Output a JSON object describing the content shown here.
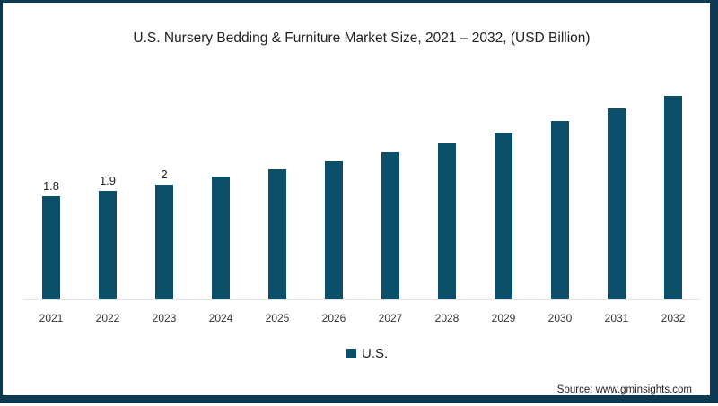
{
  "chart_data": {
    "type": "bar",
    "title": "U.S. Nursery Bedding &  Furniture  Market Size, 2021 – 2032, (USD Billion)",
    "xlabel": "",
    "ylabel": "USD Billion",
    "categories": [
      "2021",
      "2022",
      "2023",
      "2024",
      "2025",
      "2026",
      "2027",
      "2028",
      "2029",
      "2030",
      "2031",
      "2032"
    ],
    "series": [
      {
        "name": "U.S.",
        "color": "#0b5068",
        "values": [
          1.8,
          1.9,
          2.0,
          2.14,
          2.27,
          2.41,
          2.57,
          2.72,
          2.91,
          3.11,
          3.33,
          3.55
        ],
        "data_labels": [
          "1.8",
          "1.9",
          "2",
          "",
          "",
          "",
          "",
          "",
          "",
          "",
          "",
          ""
        ]
      }
    ],
    "ylim": [
      0,
      3.6
    ],
    "grid": false,
    "axis_visible": false,
    "legend_position": "bottom-center",
    "source": "Source: www.gminsights.com"
  },
  "colors": {
    "bar": "#0b5068",
    "frame": "#0b3a52",
    "baseline": "#e4e4e4"
  }
}
